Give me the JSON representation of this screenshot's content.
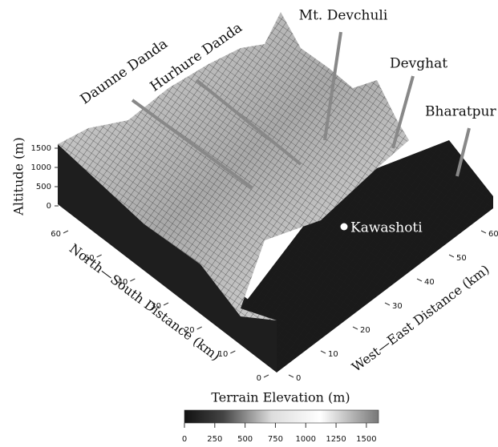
{
  "chart_data": {
    "type": "surface",
    "zlabel": "Altitude (m)",
    "xlabel": "North—South Distance (km)",
    "ylabel": "West—East Distance (km)",
    "zlim": [
      0,
      1500
    ],
    "zticks": [
      0,
      500,
      1000,
      1500
    ],
    "xlim": [
      0,
      60
    ],
    "xticks": [
      0,
      10,
      20,
      30,
      40,
      50,
      60
    ],
    "ylim": [
      0,
      60
    ],
    "yticks": [
      0,
      10,
      20,
      30,
      40,
      50,
      60
    ],
    "colorbar": {
      "label": "Terrain Elevation (m)",
      "lim": [
        0,
        1600
      ],
      "ticks": [
        0,
        250,
        500,
        750,
        1000,
        1250,
        1500
      ]
    },
    "annotations": [
      "Daunne Danda",
      "Hurhure Danda",
      "Mt. Devchuli",
      "Devghat",
      "Bharatpur",
      "Kawashoti"
    ]
  }
}
